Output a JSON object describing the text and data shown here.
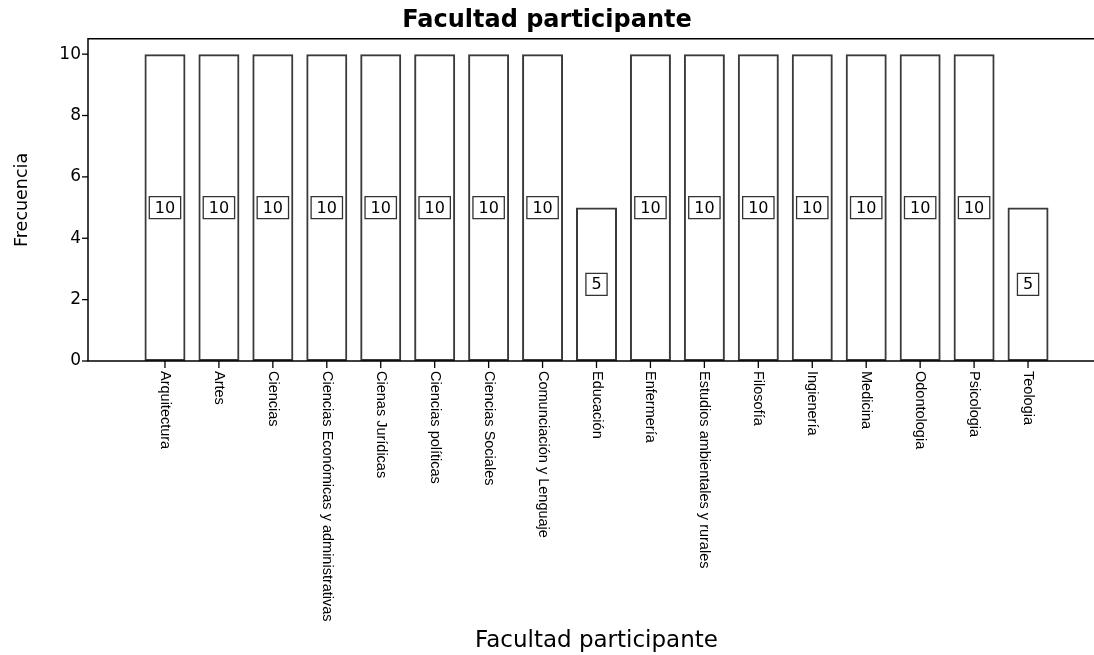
{
  "chart_data": {
    "type": "bar",
    "title": "Facultad participante",
    "xlabel": "Facultad participante",
    "ylabel": "Frecuencia",
    "categories": [
      "Arquitectura",
      "Artes",
      "Ciencias",
      "Ciencias Económicas y administrativas",
      "Cienas Jurídicas",
      "Ciencias políticas",
      "Ciencias Sociales",
      "Comunciación y Lenguaje",
      "Educación",
      "Enfermería",
      "Estudios ambientales y rurales",
      "Filosofía",
      "Ingienería",
      "Medicina",
      "Odontologia",
      "Psicologia",
      "Teologia"
    ],
    "values": [
      10,
      10,
      10,
      10,
      10,
      10,
      10,
      10,
      5,
      10,
      10,
      10,
      10,
      10,
      10,
      10,
      5
    ],
    "color": "#3a3a3a",
    "ylim": [
      0,
      10.5
    ],
    "yticks": [
      0,
      2,
      4,
      6,
      8,
      10
    ],
    "data_labels": true
  }
}
